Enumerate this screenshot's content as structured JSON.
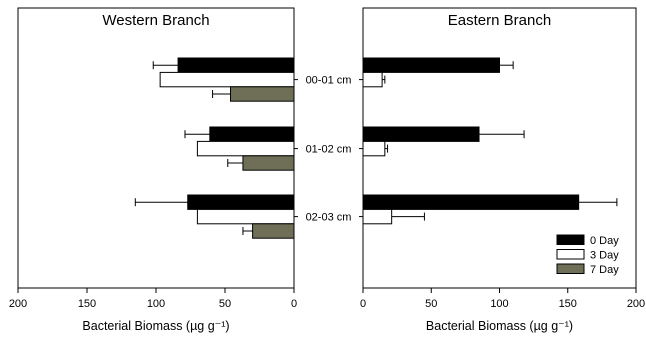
{
  "chart_data": [
    {
      "type": "bar",
      "orientation": "horizontal",
      "title": "Western Branch",
      "xlabel": "Bacterial Biomass (µg g⁻¹)",
      "xlim": [
        200,
        0
      ],
      "x_reversed": true,
      "xticks": [
        "200",
        "150",
        "100",
        "50",
        "0"
      ],
      "categories": [
        "00-01 cm",
        "01-02 cm",
        "02-03 cm"
      ],
      "series": [
        {
          "name": "0 Day",
          "values": [
            84,
            61,
            77
          ],
          "errors": [
            18,
            18,
            38
          ]
        },
        {
          "name": "3 Day",
          "values": [
            97,
            70,
            70
          ],
          "errors": [
            0,
            0,
            0
          ]
        },
        {
          "name": "7 Day",
          "values": [
            46,
            37,
            30
          ],
          "errors": [
            13,
            11,
            7
          ]
        }
      ]
    },
    {
      "type": "bar",
      "orientation": "horizontal",
      "title": "Eastern Branch",
      "xlabel": "Bacterial Biomass (µg g⁻¹)",
      "xlim": [
        0,
        200
      ],
      "xticks": [
        "0",
        "50",
        "100",
        "150",
        "200"
      ],
      "categories": [
        "00-01 cm",
        "01-02 cm",
        "02-03 cm"
      ],
      "series": [
        {
          "name": "0 Day",
          "values": [
            100,
            85,
            158
          ],
          "errors": [
            10,
            33,
            28
          ]
        },
        {
          "name": "3 Day",
          "values": [
            14,
            16,
            21
          ],
          "errors": [
            2,
            2,
            24
          ]
        }
      ],
      "legend": {
        "placement": "bottom-right",
        "entries": [
          "0 Day",
          "3 Day",
          "7 Day"
        ]
      }
    }
  ],
  "colors": {
    "0 Day": "#000000",
    "3 Day": "#ffffff",
    "7 Day": "#6f6f57"
  }
}
